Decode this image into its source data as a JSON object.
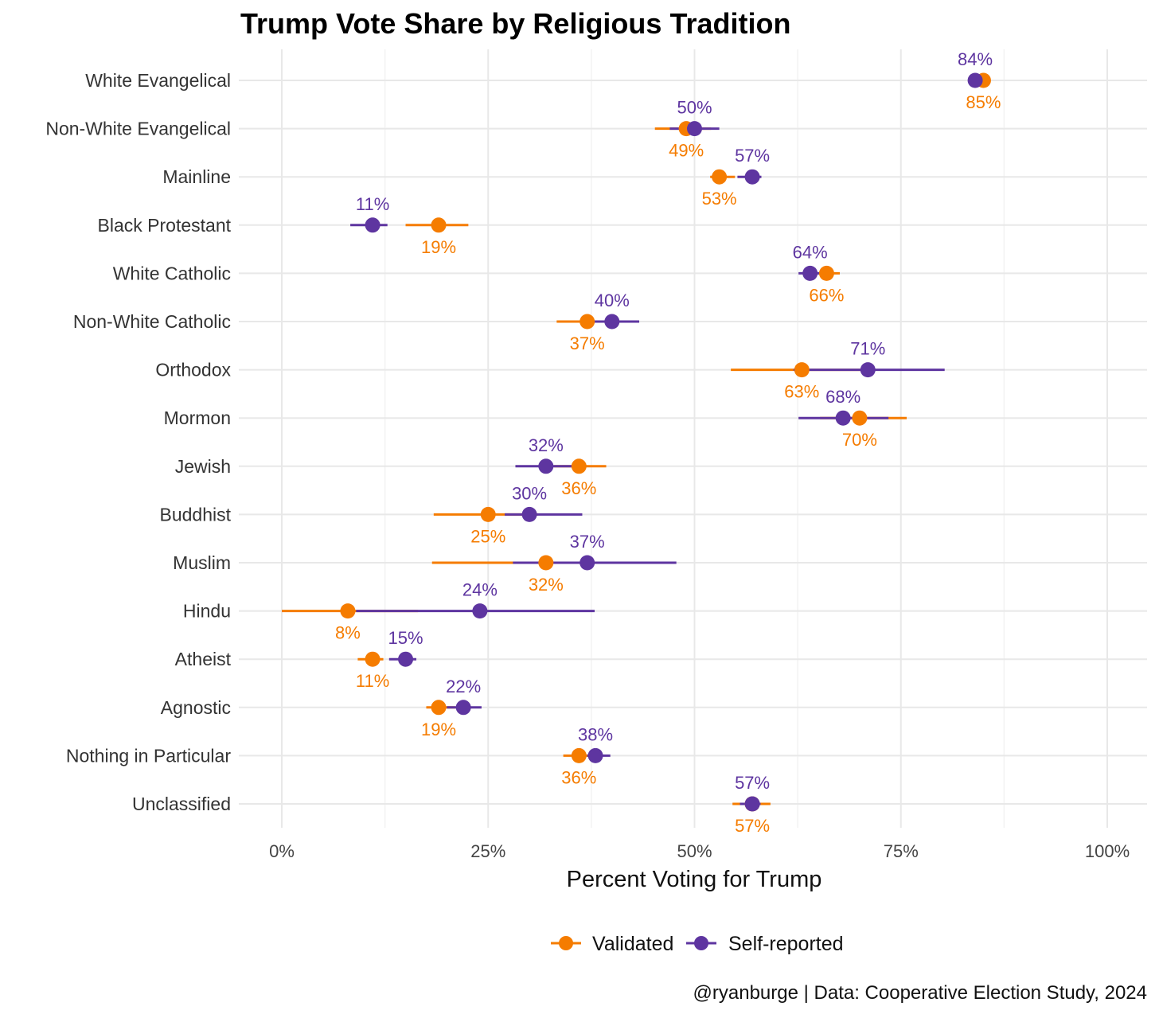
{
  "chart_data": {
    "type": "dot-errorbar",
    "title": "Trump Vote Share by Religious Tradition",
    "xlabel": "Percent Voting for Trump",
    "ylabel": "",
    "xlim": [
      0,
      100
    ],
    "x_ticks": [
      "0%",
      "25%",
      "50%",
      "75%",
      "100%"
    ],
    "x_tick_values": [
      0,
      25,
      50,
      75,
      100
    ],
    "grid": true,
    "legend_position": "bottom",
    "caption": "@ryanburge | Data: Cooperative Election Study, 2024",
    "categories": [
      "White Evangelical",
      "Non-White Evangelical",
      "Mainline",
      "Black Protestant",
      "White Catholic",
      "Non-White Catholic",
      "Orthodox",
      "Mormon",
      "Jewish",
      "Buddhist",
      "Muslim",
      "Hindu",
      "Atheist",
      "Agnostic",
      "Nothing in Particular",
      "Unclassified"
    ],
    "series": [
      {
        "name": "Validated",
        "color": "#F57C00",
        "values": [
          85,
          49,
          53,
          19,
          66,
          37,
          63,
          70,
          36,
          25,
          32,
          8,
          11,
          19,
          36,
          57
        ],
        "labels": [
          "85%",
          "49%",
          "53%",
          "19%",
          "66%",
          "37%",
          "63%",
          "70%",
          "36%",
          "25%",
          "32%",
          "8%",
          "11%",
          "19%",
          "36%",
          "57%"
        ],
        "ci_low": [
          84.2,
          45.2,
          51.9,
          15.0,
          64.8,
          33.3,
          54.4,
          65.2,
          33.0,
          18.4,
          18.2,
          0.0,
          9.2,
          17.5,
          34.1,
          54.6
        ],
        "ci_high": [
          85.8,
          52.0,
          54.9,
          22.6,
          67.6,
          40.5,
          71.0,
          75.7,
          39.3,
          31.0,
          45.6,
          16.5,
          12.3,
          21.0,
          37.5,
          59.2
        ]
      },
      {
        "name": "Self-reported",
        "color": "#5E35A0",
        "values": [
          84,
          50,
          57,
          11,
          64,
          40,
          71,
          68,
          32,
          30,
          37,
          24,
          15,
          22,
          38,
          57
        ],
        "labels": [
          "84%",
          "50%",
          "57%",
          "11%",
          "64%",
          "40%",
          "71%",
          "68%",
          "32%",
          "30%",
          "37%",
          "24%",
          "15%",
          "22%",
          "38%",
          "57%"
        ],
        "ci_low": [
          83.5,
          47.0,
          55.2,
          8.3,
          62.6,
          37.0,
          62.0,
          62.6,
          28.3,
          27.0,
          28.0,
          9.0,
          13.0,
          20.0,
          37.0,
          55.5
        ],
        "ci_high": [
          84.6,
          53.0,
          58.1,
          12.8,
          65.5,
          43.3,
          80.3,
          73.5,
          36.0,
          36.4,
          47.8,
          37.9,
          16.3,
          24.2,
          39.8,
          58.0
        ]
      }
    ]
  }
}
